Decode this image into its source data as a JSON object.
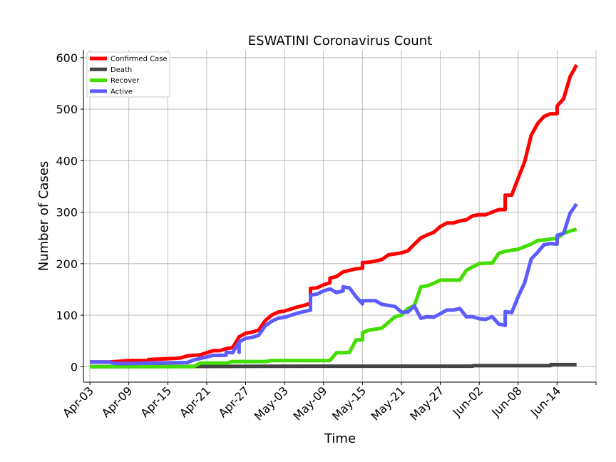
{
  "chart_data": {
    "type": "line",
    "title": "ESWATINI Coronavirus Count",
    "xlabel": "Time",
    "ylabel": "Number of Cases",
    "x_ticks": [
      "Apr-03",
      "Apr-09",
      "Apr-15",
      "Apr-21",
      "Apr-27",
      "May-03",
      "May-09",
      "May-15",
      "May-21",
      "May-27",
      "Jun-02",
      "Jun-08",
      "Jun-14"
    ],
    "y_ticks": [
      0,
      100,
      200,
      300,
      400,
      500,
      600
    ],
    "ylim": [
      -30,
      615
    ],
    "xlim": [
      "2020-04-02",
      "2020-06-20"
    ],
    "grid": true,
    "legend_position": "top-left",
    "series": [
      {
        "name": "Confirmed Case",
        "color": "#ff0000",
        "points": [
          [
            "2020-04-03",
            9
          ],
          [
            "2020-04-06",
            9
          ],
          [
            "2020-04-07",
            10
          ],
          [
            "2020-04-09",
            12
          ],
          [
            "2020-04-12",
            12
          ],
          [
            "2020-04-12",
            14
          ],
          [
            "2020-04-14",
            15
          ],
          [
            "2020-04-16",
            16
          ],
          [
            "2020-04-17",
            17
          ],
          [
            "2020-04-18",
            21
          ],
          [
            "2020-04-19",
            22
          ],
          [
            "2020-04-20",
            23
          ],
          [
            "2020-04-21",
            27
          ],
          [
            "2020-04-22",
            31
          ],
          [
            "2020-04-23",
            31
          ],
          [
            "2020-04-24",
            35
          ],
          [
            "2020-04-25",
            37
          ],
          [
            "2020-04-26",
            58
          ],
          [
            "2020-04-27",
            65
          ],
          [
            "2020-04-28",
            67
          ],
          [
            "2020-04-29",
            71
          ],
          [
            "2020-04-30",
            89
          ],
          [
            "2020-05-01",
            100
          ],
          [
            "2020-05-02",
            106
          ],
          [
            "2020-05-03",
            108
          ],
          [
            "2020-05-04",
            112
          ],
          [
            "2020-05-05",
            116
          ],
          [
            "2020-05-06",
            119
          ],
          [
            "2020-05-07",
            123
          ],
          [
            "2020-05-07",
            152
          ],
          [
            "2020-05-08",
            153
          ],
          [
            "2020-05-09",
            159
          ],
          [
            "2020-05-10",
            163
          ],
          [
            "2020-05-10",
            172
          ],
          [
            "2020-05-11",
            175
          ],
          [
            "2020-05-12",
            184
          ],
          [
            "2020-05-13",
            187
          ],
          [
            "2020-05-14",
            190
          ],
          [
            "2020-05-15",
            191
          ],
          [
            "2020-05-15",
            202
          ],
          [
            "2020-05-16",
            203
          ],
          [
            "2020-05-17",
            205
          ],
          [
            "2020-05-18",
            208
          ],
          [
            "2020-05-19",
            217
          ],
          [
            "2020-05-20",
            219
          ],
          [
            "2020-05-21",
            221
          ],
          [
            "2020-05-22",
            225
          ],
          [
            "2020-05-23",
            238
          ],
          [
            "2020-05-24",
            250
          ],
          [
            "2020-05-25",
            256
          ],
          [
            "2020-05-26",
            261
          ],
          [
            "2020-05-27",
            272
          ],
          [
            "2020-05-28",
            279
          ],
          [
            "2020-05-29",
            279
          ],
          [
            "2020-05-30",
            283
          ],
          [
            "2020-05-31",
            285
          ],
          [
            "2020-06-01",
            293
          ],
          [
            "2020-06-02",
            295
          ],
          [
            "2020-06-03",
            295
          ],
          [
            "2020-06-04",
            300
          ],
          [
            "2020-06-05",
            305
          ],
          [
            "2020-06-06",
            305
          ],
          [
            "2020-06-06",
            333
          ],
          [
            "2020-06-07",
            333
          ],
          [
            "2020-06-08",
            366
          ],
          [
            "2020-06-09",
            398
          ],
          [
            "2020-06-10",
            449
          ],
          [
            "2020-06-11",
            472
          ],
          [
            "2020-06-12",
            486
          ],
          [
            "2020-06-13",
            491
          ],
          [
            "2020-06-14",
            491
          ],
          [
            "2020-06-14",
            506
          ],
          [
            "2020-06-15",
            520
          ],
          [
            "2020-06-16",
            563
          ],
          [
            "2020-06-17",
            586
          ]
        ]
      },
      {
        "name": "Death",
        "color": "#444444",
        "points": [
          [
            "2020-04-03",
            0
          ],
          [
            "2020-05-07",
            1
          ],
          [
            "2020-06-01",
            1
          ],
          [
            "2020-06-01",
            2
          ],
          [
            "2020-06-13",
            2
          ],
          [
            "2020-06-13",
            4
          ],
          [
            "2020-06-17",
            4
          ]
        ]
      },
      {
        "name": "Recover",
        "color": "#44dd00",
        "points": [
          [
            "2020-04-03",
            0
          ],
          [
            "2020-04-19",
            0
          ],
          [
            "2020-04-20",
            7
          ],
          [
            "2020-04-24",
            7
          ],
          [
            "2020-04-25",
            10
          ],
          [
            "2020-04-30",
            10
          ],
          [
            "2020-05-01",
            12
          ],
          [
            "2020-05-10",
            12
          ],
          [
            "2020-05-11",
            27
          ],
          [
            "2020-05-12",
            27
          ],
          [
            "2020-05-13",
            28
          ],
          [
            "2020-05-14",
            52
          ],
          [
            "2020-05-15",
            52
          ],
          [
            "2020-05-15",
            66
          ],
          [
            "2020-05-16",
            71
          ],
          [
            "2020-05-17",
            73
          ],
          [
            "2020-05-18",
            75
          ],
          [
            "2020-05-19",
            86
          ],
          [
            "2020-05-20",
            97
          ],
          [
            "2020-05-21",
            100
          ],
          [
            "2020-05-22",
            113
          ],
          [
            "2020-05-23",
            119
          ],
          [
            "2020-05-24",
            155
          ],
          [
            "2020-05-25",
            157
          ],
          [
            "2020-05-26",
            162
          ],
          [
            "2020-05-27",
            168
          ],
          [
            "2020-05-28",
            168
          ],
          [
            "2020-05-30",
            168
          ],
          [
            "2020-05-31",
            187
          ],
          [
            "2020-06-01",
            194
          ],
          [
            "2020-06-02",
            200
          ],
          [
            "2020-06-03",
            201
          ],
          [
            "2020-06-04",
            201
          ],
          [
            "2020-06-05",
            220
          ],
          [
            "2020-06-06",
            224
          ],
          [
            "2020-06-07",
            226
          ],
          [
            "2020-06-08",
            228
          ],
          [
            "2020-06-09",
            233
          ],
          [
            "2020-06-10",
            238
          ],
          [
            "2020-06-11",
            245
          ],
          [
            "2020-06-12",
            246
          ],
          [
            "2020-06-13",
            248
          ],
          [
            "2020-06-14",
            249
          ],
          [
            "2020-06-15",
            259
          ],
          [
            "2020-06-16",
            263
          ],
          [
            "2020-06-17",
            267
          ]
        ]
      },
      {
        "name": "Active",
        "color": "#5c5cff",
        "points": [
          [
            "2020-04-03",
            9
          ],
          [
            "2020-04-06",
            9
          ],
          [
            "2020-04-07",
            6
          ],
          [
            "2020-04-09",
            6
          ],
          [
            "2020-04-12",
            7
          ],
          [
            "2020-04-18",
            8
          ],
          [
            "2020-04-19",
            13
          ],
          [
            "2020-04-20",
            16
          ],
          [
            "2020-04-22",
            22
          ],
          [
            "2020-04-24",
            22
          ],
          [
            "2020-04-24",
            28
          ],
          [
            "2020-04-25",
            27
          ],
          [
            "2020-04-26",
            48
          ],
          [
            "2020-04-26",
            28
          ],
          [
            "2020-04-26",
            48
          ],
          [
            "2020-04-27",
            55
          ],
          [
            "2020-04-28",
            57
          ],
          [
            "2020-04-29",
            61
          ],
          [
            "2020-04-30",
            79
          ],
          [
            "2020-05-01",
            88
          ],
          [
            "2020-05-02",
            94
          ],
          [
            "2020-05-03",
            96
          ],
          [
            "2020-05-04",
            100
          ],
          [
            "2020-05-05",
            104
          ],
          [
            "2020-05-06",
            107
          ],
          [
            "2020-05-07",
            110
          ],
          [
            "2020-05-07",
            139
          ],
          [
            "2020-05-08",
            141
          ],
          [
            "2020-05-09",
            147
          ],
          [
            "2020-05-10",
            151
          ],
          [
            "2020-05-11",
            144
          ],
          [
            "2020-05-12",
            147
          ],
          [
            "2020-05-12",
            155
          ],
          [
            "2020-05-13",
            153
          ],
          [
            "2020-05-14",
            136
          ],
          [
            "2020-05-15",
            122
          ],
          [
            "2020-05-15",
            128
          ],
          [
            "2020-05-16",
            128
          ],
          [
            "2020-05-17",
            128
          ],
          [
            "2020-05-18",
            121
          ],
          [
            "2020-05-19",
            119
          ],
          [
            "2020-05-20",
            117
          ],
          [
            "2020-05-21",
            106
          ],
          [
            "2020-05-22",
            106
          ],
          [
            "2020-05-23",
            118
          ],
          [
            "2020-05-24",
            94
          ],
          [
            "2020-05-25",
            97
          ],
          [
            "2020-05-26",
            96
          ],
          [
            "2020-05-27",
            103
          ],
          [
            "2020-05-28",
            110
          ],
          [
            "2020-05-29",
            110
          ],
          [
            "2020-05-30",
            113
          ],
          [
            "2020-05-31",
            97
          ],
          [
            "2020-06-01",
            97
          ],
          [
            "2020-06-02",
            93
          ],
          [
            "2020-06-03",
            92
          ],
          [
            "2020-06-04",
            97
          ],
          [
            "2020-06-05",
            83
          ],
          [
            "2020-06-06",
            80
          ],
          [
            "2020-06-06",
            107
          ],
          [
            "2020-06-07",
            105
          ],
          [
            "2020-06-08",
            136
          ],
          [
            "2020-06-09",
            163
          ],
          [
            "2020-06-10",
            209
          ],
          [
            "2020-06-11",
            222
          ],
          [
            "2020-06-12",
            237
          ],
          [
            "2020-06-13",
            239
          ],
          [
            "2020-06-14",
            238
          ],
          [
            "2020-06-14",
            255
          ],
          [
            "2020-06-15",
            259
          ],
          [
            "2020-06-16",
            298
          ],
          [
            "2020-06-17",
            316
          ]
        ]
      }
    ]
  }
}
